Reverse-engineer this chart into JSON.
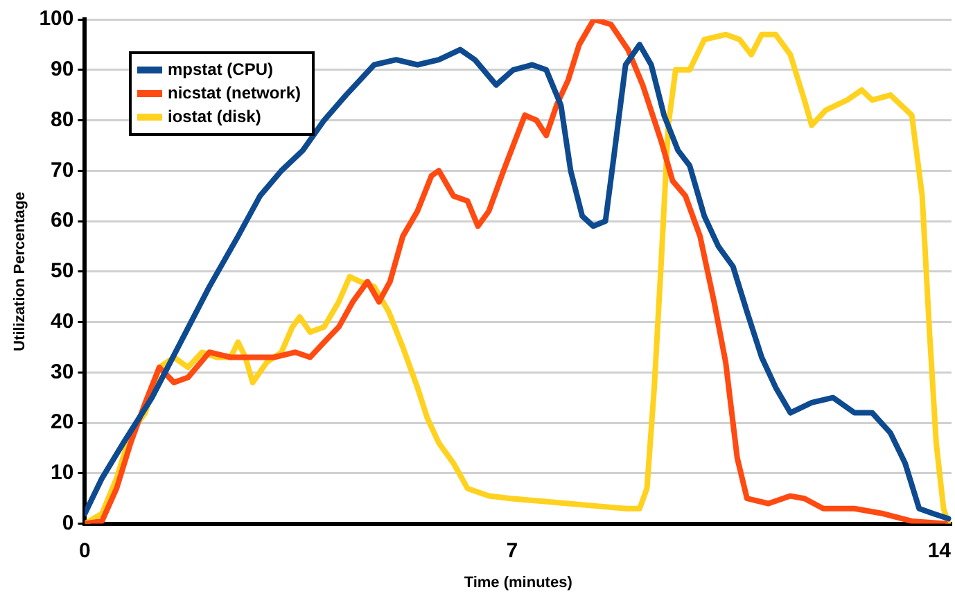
{
  "chart_data": {
    "type": "line",
    "xlabel": "Time (minutes)",
    "ylabel": "Utilization Percentage",
    "xlim": [
      0,
      14.2
    ],
    "xticks": [
      0,
      7,
      14
    ],
    "ylim": [
      0,
      100
    ],
    "yticks": [
      0,
      10,
      20,
      30,
      40,
      50,
      60,
      70,
      80,
      90,
      100
    ],
    "grid": "y",
    "legend": "top left",
    "marker": "none",
    "line_style": "solid",
    "series": [
      {
        "name": "mpstat (CPU)",
        "color": "#0e4a8f",
        "x": [
          0,
          0.28,
          0.63,
          1.1,
          1.57,
          2.04,
          2.51,
          2.87,
          3.22,
          3.57,
          3.92,
          4.28,
          4.74,
          5.1,
          5.45,
          5.8,
          6.15,
          6.39,
          6.74,
          7.02,
          7.33,
          7.56,
          7.8,
          7.96,
          8.15,
          8.33,
          8.53,
          8.67,
          8.86,
          9.09,
          9.28,
          9.49,
          9.72,
          9.91,
          10.15,
          10.38,
          10.62,
          10.85,
          11.09,
          11.32,
          11.56,
          11.91,
          12.26,
          12.61,
          12.9,
          13.2,
          13.44,
          13.67,
          13.9,
          14.15
        ],
        "values": [
          2,
          9,
          16,
          25,
          36,
          47,
          57,
          65,
          70,
          74,
          80,
          85,
          91,
          92,
          91,
          92,
          94,
          92,
          87,
          90,
          91,
          90,
          83,
          70,
          61,
          59,
          60,
          73,
          91,
          95,
          91,
          81,
          74,
          71,
          61,
          55,
          51,
          42,
          33,
          27,
          22,
          24,
          25,
          22,
          22,
          18,
          12,
          3,
          2,
          1
        ]
      },
      {
        "name": "nicstat (network)",
        "color": "#ff4a12",
        "x": [
          0,
          0.28,
          0.52,
          0.75,
          0.99,
          1.22,
          1.46,
          1.69,
          2.04,
          2.39,
          2.75,
          3.1,
          3.45,
          3.69,
          3.92,
          4.16,
          4.39,
          4.63,
          4.82,
          5.0,
          5.21,
          5.45,
          5.68,
          5.8,
          6.04,
          6.27,
          6.44,
          6.62,
          6.86,
          7.05,
          7.21,
          7.4,
          7.56,
          7.73,
          7.92,
          8.1,
          8.34,
          8.62,
          8.9,
          9.14,
          9.44,
          9.63,
          9.84,
          10.08,
          10.31,
          10.5,
          10.69,
          10.85,
          11.2,
          11.56,
          11.79,
          12.1,
          12.61,
          13.08,
          13.55,
          14.1
        ],
        "values": [
          0,
          0.5,
          7,
          16,
          24,
          31,
          28,
          29,
          34,
          33,
          33,
          33,
          34,
          33,
          36,
          39,
          44,
          48,
          44,
          48,
          57,
          62,
          69,
          70,
          65,
          64,
          59,
          62,
          70,
          76,
          81,
          80,
          77,
          83,
          88,
          95,
          100,
          99,
          94,
          87,
          76,
          68,
          65,
          57,
          44,
          32,
          13,
          5,
          4,
          5.5,
          5,
          3,
          3,
          2,
          0.5,
          0
        ]
      },
      {
        "name": "iostat (disk)",
        "color": "#ffd21f",
        "x": [
          0,
          0.28,
          0.52,
          0.75,
          0.99,
          1.22,
          1.46,
          1.69,
          1.92,
          2.16,
          2.39,
          2.51,
          2.63,
          2.75,
          2.98,
          3.22,
          3.4,
          3.52,
          3.69,
          3.92,
          4.16,
          4.34,
          4.51,
          4.74,
          4.98,
          5.21,
          5.45,
          5.61,
          5.8,
          6.04,
          6.27,
          6.62,
          6.98,
          7.44,
          7.92,
          8.39,
          8.86,
          9.09,
          9.21,
          9.33,
          9.44,
          9.56,
          9.68,
          9.91,
          10.15,
          10.5,
          10.73,
          10.92,
          11.09,
          11.32,
          11.56,
          11.79,
          11.91,
          12.14,
          12.49,
          12.73,
          12.9,
          13.2,
          13.55,
          13.72,
          13.84,
          13.95,
          14.07,
          14.15
        ],
        "values": [
          0,
          2,
          9,
          18,
          22,
          31,
          33,
          31,
          34,
          33,
          33,
          36,
          33,
          28,
          32,
          34,
          39,
          41,
          38,
          39,
          44,
          49,
          48,
          47,
          42,
          35,
          27,
          21,
          16,
          12,
          7,
          5.5,
          5,
          4.5,
          4,
          3.5,
          3,
          3,
          7,
          27,
          51,
          79,
          90,
          90,
          96,
          97,
          96,
          93,
          97,
          97,
          93,
          84,
          79,
          82,
          84,
          86,
          84,
          85,
          81,
          65,
          38,
          16,
          3,
          0
        ]
      }
    ]
  }
}
